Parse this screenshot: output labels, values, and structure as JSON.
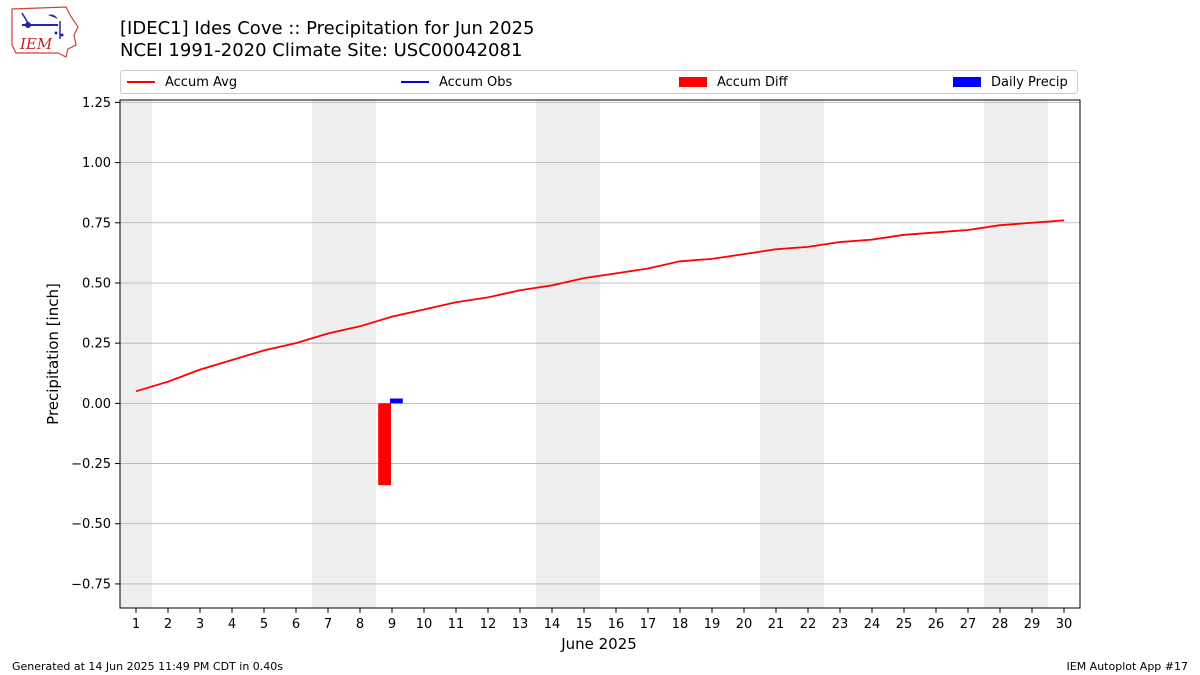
{
  "header": {
    "title_line1": "[IDEC1] Ides Cove :: Precipitation for Jun 2025",
    "title_line2": "NCEI 1991-2020 Climate Site: USC00042081",
    "logo_text": "IEM"
  },
  "footer": {
    "generated": "Generated at 14 Jun 2025 11:49 PM CDT in 0.40s",
    "app": "IEM Autoplot App #17"
  },
  "colors": {
    "accum_avg": "#ff0000",
    "accum_obs": "#0000ff",
    "accum_diff": "#ff0000",
    "daily_precip": "#0000ff",
    "weekend_shade": "#eeeeee",
    "grid": "#b0b0b0"
  },
  "legend": [
    {
      "label": "Accum Avg",
      "kind": "line",
      "color": "#ff0000"
    },
    {
      "label": "Accum Obs",
      "kind": "line",
      "color": "#0000ff"
    },
    {
      "label": "Accum Diff",
      "kind": "patch",
      "color": "#ff0000"
    },
    {
      "label": "Daily Precip",
      "kind": "patch",
      "color": "#0000ff"
    }
  ],
  "chart_data": {
    "type": "line",
    "title": "[IDEC1] Ides Cove :: Precipitation for Jun 2025",
    "subtitle": "NCEI 1991-2020 Climate Site: USC00042081",
    "xlabel": "June 2025",
    "ylabel": "Precipitation [inch]",
    "xlim": [
      0.5,
      30.5
    ],
    "ylim": [
      -0.85,
      1.26
    ],
    "grid": true,
    "legend_placement": "top",
    "x_ticks": [
      1,
      2,
      3,
      4,
      5,
      6,
      7,
      8,
      9,
      10,
      11,
      12,
      13,
      14,
      15,
      16,
      17,
      18,
      19,
      20,
      21,
      22,
      23,
      24,
      25,
      26,
      27,
      28,
      29,
      30
    ],
    "y_ticks": [
      -0.75,
      -0.5,
      -0.25,
      0.0,
      0.25,
      0.5,
      0.75,
      1.0,
      1.25
    ],
    "y_tick_labels": [
      "−0.75",
      "−0.50",
      "−0.25",
      "0.00",
      "0.25",
      "0.50",
      "0.75",
      "1.00",
      "1.25"
    ],
    "weekend_days": [
      1,
      7,
      8,
      14,
      15,
      21,
      22,
      28,
      29
    ],
    "series": [
      {
        "name": "Accum Avg",
        "kind": "line",
        "x": [
          1,
          2,
          3,
          4,
          5,
          6,
          7,
          8,
          9,
          10,
          11,
          12,
          13,
          14,
          15,
          16,
          17,
          18,
          19,
          20,
          21,
          22,
          23,
          24,
          25,
          26,
          27,
          28,
          29,
          30
        ],
        "values": [
          0.05,
          0.09,
          0.14,
          0.18,
          0.22,
          0.25,
          0.29,
          0.32,
          0.36,
          0.39,
          0.42,
          0.44,
          0.47,
          0.49,
          0.52,
          0.54,
          0.56,
          0.59,
          0.6,
          0.62,
          0.64,
          0.65,
          0.67,
          0.68,
          0.7,
          0.71,
          0.72,
          0.74,
          0.75,
          0.76
        ]
      },
      {
        "name": "Accum Obs",
        "kind": "line",
        "x": [],
        "values": []
      },
      {
        "name": "Accum Diff",
        "kind": "bar",
        "x": [
          9
        ],
        "values": [
          -0.34
        ]
      },
      {
        "name": "Daily Precip",
        "kind": "bar",
        "x": [
          9
        ],
        "values": [
          0.02
        ]
      }
    ]
  }
}
